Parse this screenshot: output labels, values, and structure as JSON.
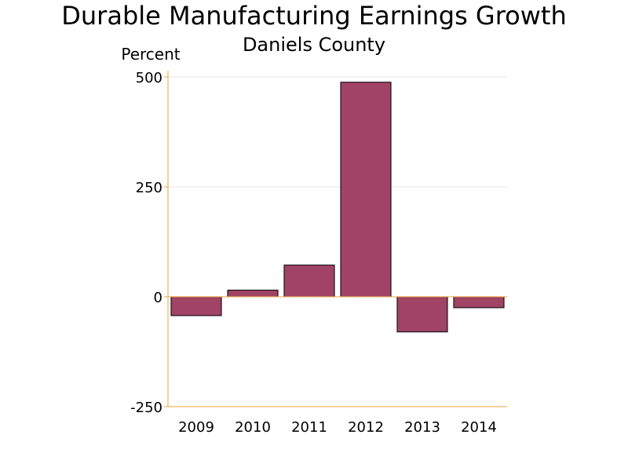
{
  "chart_data": {
    "type": "bar",
    "title": "Durable Manufacturing Earnings Growth",
    "subtitle": "Daniels County",
    "ylabel": "Percent",
    "xlabel": "",
    "categories": [
      "2009",
      "2010",
      "2011",
      "2012",
      "2013",
      "2014"
    ],
    "values": [
      -43,
      15,
      72,
      488,
      -80,
      -25
    ],
    "ylim": [
      -250,
      500
    ],
    "yticks": [
      500,
      250,
      0,
      -250
    ],
    "grid": true,
    "colors": {
      "bar_fill": "#A04365",
      "bar_stroke": "#000000",
      "axis": "#E8A33A",
      "grid": "#E6E6E6"
    }
  }
}
